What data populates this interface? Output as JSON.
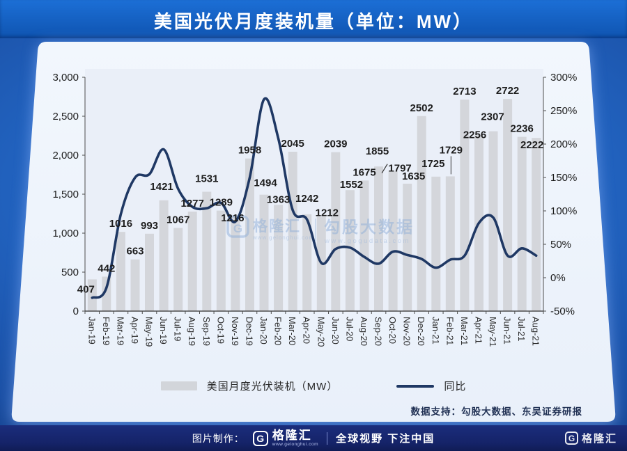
{
  "header": {
    "title": "美国光伏月度装机量（单位：MW）"
  },
  "chart_data": {
    "type": "bar",
    "title": "美国光伏月度装机量（单位：MW）",
    "categories": [
      "Jan-19",
      "Feb-19",
      "Mar-19",
      "Apr-19",
      "May-19",
      "Jun-19",
      "Jul-19",
      "Aug-19",
      "Sep-19",
      "Oct-19",
      "Nov-19",
      "Dec-19",
      "Jan-20",
      "Feb-20",
      "Mar-20",
      "Apr-20",
      "May-20",
      "Jun-20",
      "Jul-20",
      "Aug-20",
      "Sep-20",
      "Oct-20",
      "Nov-20",
      "Dec-20",
      "Jan-21",
      "Feb-21",
      "Mar-21",
      "Apr-21",
      "May-21",
      "Jun-21",
      "Jul-21",
      "Aug-21"
    ],
    "series": [
      {
        "name": "美国月度光伏装机（MW）",
        "type": "bar",
        "axis": "left",
        "values": [
          407,
          442,
          1016,
          663,
          993,
          1421,
          1067,
          1277,
          1531,
          1289,
          1216,
          1958,
          1494,
          1363,
          2045,
          1242,
          1212,
          2039,
          1552,
          1675,
          1855,
          1797,
          1635,
          2502,
          1725,
          1729,
          2713,
          2256,
          2307,
          2722,
          2236,
          2222
        ]
      },
      {
        "name": "同比",
        "type": "line",
        "axis": "right",
        "unit": "%",
        "values": [
          -30,
          -15,
          95,
          150,
          155,
          192,
          133,
          106,
          104,
          112,
          84,
          150,
          267,
          208,
          101,
          87,
          22,
          43,
          45,
          31,
          21,
          39,
          34,
          28,
          15,
          27,
          33,
          82,
          90,
          33,
          44,
          33
        ]
      }
    ],
    "left_axis": {
      "min": 0,
      "max": 3000,
      "tick_labels": [
        "0",
        "500",
        "1,000",
        "1,500",
        "2,000",
        "2,500",
        "3,000"
      ]
    },
    "right_axis": {
      "min": -50,
      "max": 300,
      "tick_labels": [
        "-50%",
        "0%",
        "50%",
        "100%",
        "150%",
        "200%",
        "250%",
        "300%"
      ]
    },
    "grid": false,
    "legend_position": "bottom",
    "bar_color": "#d4d6db",
    "line_color": "#1f3864"
  },
  "legend": {
    "bar_label": "美国月度光伏装机（MW）",
    "line_label": "同比"
  },
  "watermark": {
    "brand": "格隆汇",
    "brand_url": "www.gelonghui.com",
    "data_brand": "勾股大数据",
    "data_brand_url": "www.gogudata.com"
  },
  "footer": {
    "data_support": "数据支持：勾股大数据、东吴证券研报",
    "credit_label": "图片制作：",
    "brand": "格隆汇",
    "brand_url": "www.gelonghui.com",
    "slogan": "全球视野 下注中国",
    "logo_letter": "G"
  },
  "colors": {
    "accent_line": "#1f3864",
    "bar_gray": "#d4d6db",
    "header_blue": "#1565c6",
    "page_navy": "#0a1b44",
    "footer_navy": "#152368",
    "card_bg": "#f0f5fc"
  }
}
